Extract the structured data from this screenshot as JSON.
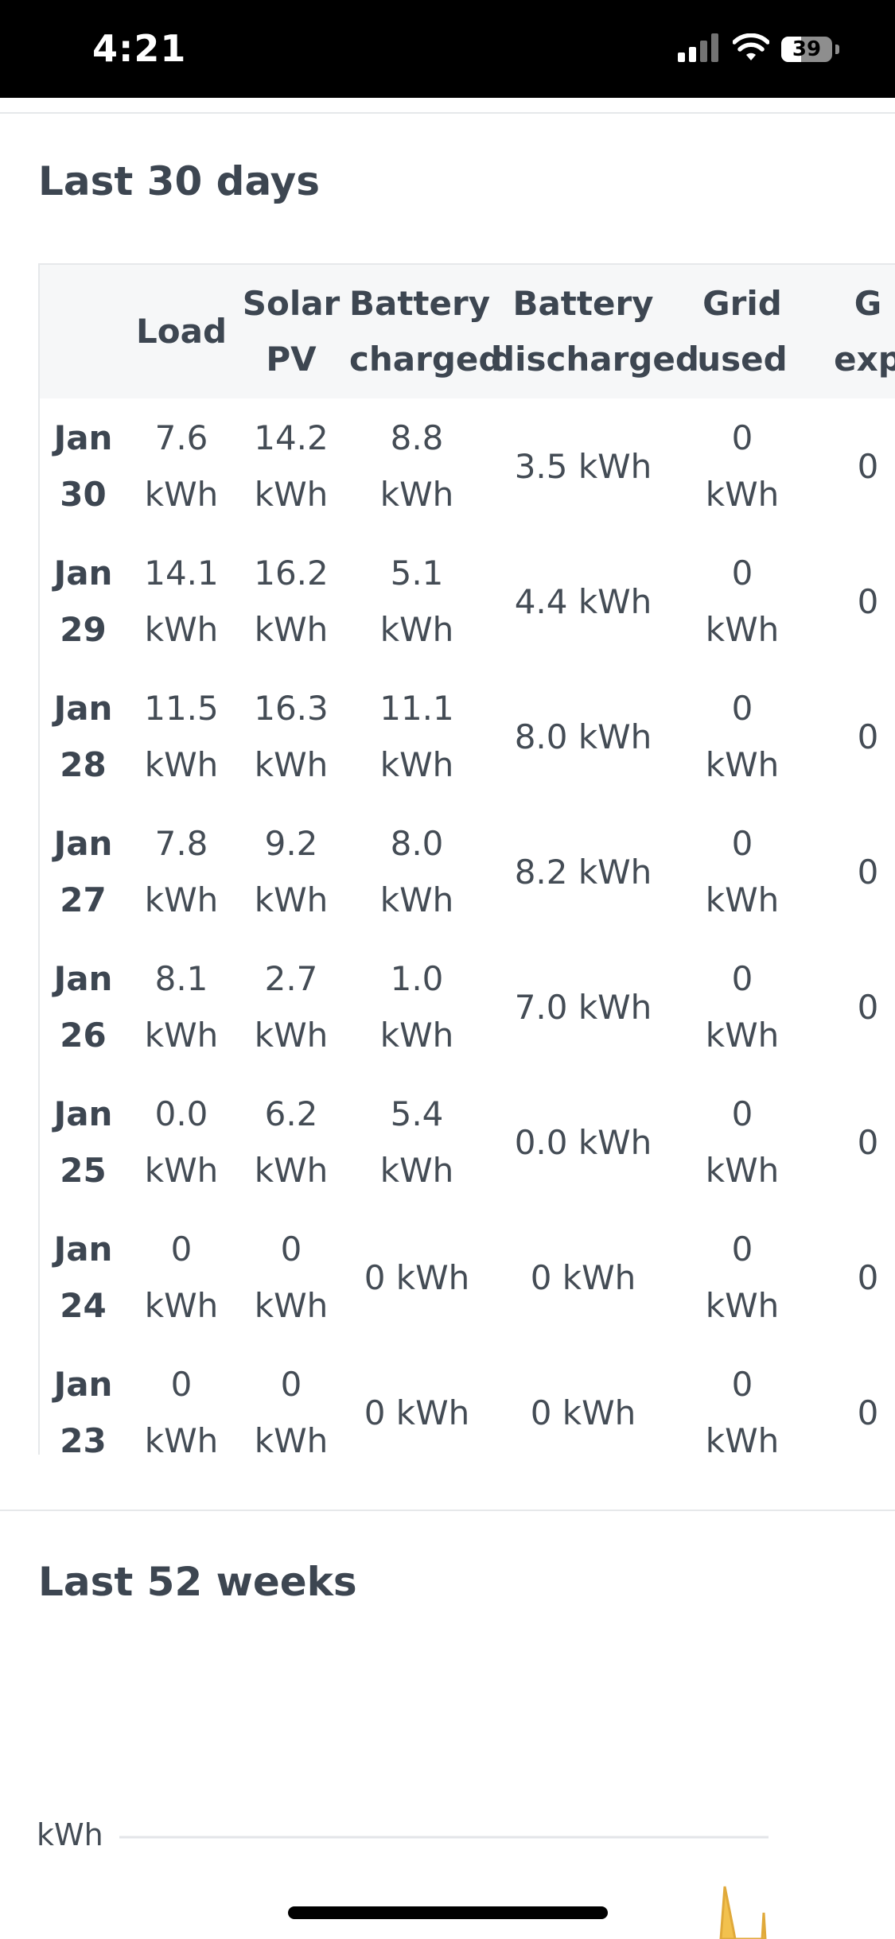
{
  "status_bar": {
    "time": "4:21",
    "battery": "39",
    "battery_level": 0.39
  },
  "daily": {
    "title": "Last 30 days",
    "columns": [
      [
        "",
        ""
      ],
      [
        "Load",
        ""
      ],
      [
        "Solar",
        "PV"
      ],
      [
        "Battery",
        "charged"
      ],
      [
        "Battery",
        "discharged"
      ],
      [
        "Grid",
        "used"
      ],
      [
        "G",
        "exp"
      ]
    ],
    "rows": [
      {
        "date": [
          "Jan",
          "30"
        ],
        "cells": [
          [
            "7.6",
            "kWh"
          ],
          [
            "14.2",
            "kWh"
          ],
          [
            "8.8",
            "kWh"
          ],
          [
            "3.5 kWh"
          ],
          [
            "0",
            "kWh"
          ],
          [
            "0"
          ]
        ]
      },
      {
        "date": [
          "Jan",
          "29"
        ],
        "cells": [
          [
            "14.1",
            "kWh"
          ],
          [
            "16.2",
            "kWh"
          ],
          [
            "5.1 kWh"
          ],
          [
            "4.4 kWh"
          ],
          [
            "0",
            "kWh"
          ],
          [
            "0"
          ]
        ]
      },
      {
        "date": [
          "Jan",
          "28"
        ],
        "cells": [
          [
            "11.5",
            "kWh"
          ],
          [
            "16.3",
            "kWh"
          ],
          [
            "11.1 kWh"
          ],
          [
            "8.0 kWh"
          ],
          [
            "0",
            "kWh"
          ],
          [
            "0"
          ]
        ]
      },
      {
        "date": [
          "Jan",
          "27"
        ],
        "cells": [
          [
            "7.8",
            "kWh"
          ],
          [
            "9.2",
            "kWh"
          ],
          [
            "8.0",
            "kWh"
          ],
          [
            "8.2 kWh"
          ],
          [
            "0",
            "kWh"
          ],
          [
            "0"
          ]
        ]
      },
      {
        "date": [
          "Jan",
          "26"
        ],
        "cells": [
          [
            "8.1",
            "kWh"
          ],
          [
            "2.7",
            "kWh"
          ],
          [
            "1.0 kWh"
          ],
          [
            "7.0 kWh"
          ],
          [
            "0",
            "kWh"
          ],
          [
            "0"
          ]
        ]
      },
      {
        "date": [
          "Jan",
          "25"
        ],
        "cells": [
          [
            "0.0",
            "kWh"
          ],
          [
            "6.2",
            "kWh"
          ],
          [
            "5.4",
            "kWh"
          ],
          [
            "0.0 kWh"
          ],
          [
            "0",
            "kWh"
          ],
          [
            "0"
          ]
        ]
      },
      {
        "date": [
          "Jan",
          "24"
        ],
        "cells": [
          [
            "0",
            "kWh"
          ],
          [
            "0",
            "kWh"
          ],
          [
            "0 kWh"
          ],
          [
            "0 kWh"
          ],
          [
            "0",
            "kWh"
          ],
          [
            "0"
          ]
        ]
      },
      {
        "date": [
          "Jan",
          "23"
        ],
        "cells": [
          [
            "0",
            "kWh"
          ],
          [
            "0",
            "kWh"
          ],
          [
            "0 kWh"
          ],
          [
            "0 kWh"
          ],
          [
            "0",
            "kWh"
          ],
          [
            "0"
          ]
        ]
      }
    ]
  },
  "weekly": {
    "title": "Last 52 weeks"
  },
  "chart_data": {
    "type": "area",
    "ylabel": "kWh",
    "grid": true,
    "series_color": "#f2c14e"
  }
}
